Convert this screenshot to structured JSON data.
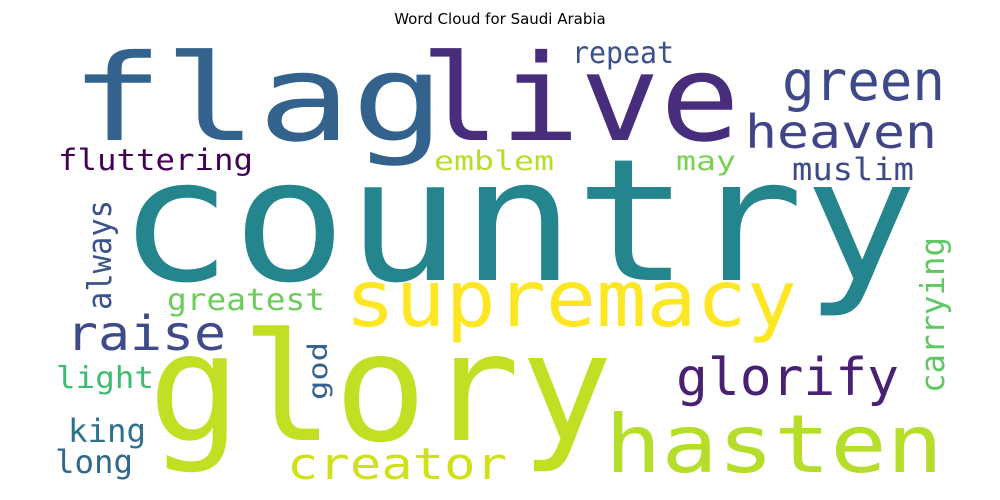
{
  "title": "Word Cloud for Saudi Arabia",
  "words": [
    {
      "text": "flag",
      "color": "#33638d"
    },
    {
      "text": "live",
      "color": "#472d7b"
    },
    {
      "text": "country",
      "color": "#25858e"
    },
    {
      "text": "glory",
      "color": "#c2df23"
    },
    {
      "text": "supremacy",
      "color": "#fde725"
    },
    {
      "text": "hasten",
      "color": "#b5de2b"
    },
    {
      "text": "green",
      "color": "#3e4989"
    },
    {
      "text": "heaven",
      "color": "#414487"
    },
    {
      "text": "repeat",
      "color": "#3b528b"
    },
    {
      "text": "fluttering",
      "color": "#440154"
    },
    {
      "text": "emblem",
      "color": "#b5de2b"
    },
    {
      "text": "may",
      "color": "#7ad151"
    },
    {
      "text": "muslim",
      "color": "#3e4a89"
    },
    {
      "text": "always",
      "color": "#3b528b"
    },
    {
      "text": "raise",
      "color": "#3e4a89"
    },
    {
      "text": "greatest",
      "color": "#6ccd5a"
    },
    {
      "text": "glorify",
      "color": "#482173"
    },
    {
      "text": "carrying",
      "color": "#5ec962"
    },
    {
      "text": "god",
      "color": "#33638d"
    },
    {
      "text": "light",
      "color": "#3fbc73"
    },
    {
      "text": "creator",
      "color": "#d0e11c"
    },
    {
      "text": "king",
      "color": "#2c728e"
    },
    {
      "text": "long",
      "color": "#31688e"
    }
  ]
}
